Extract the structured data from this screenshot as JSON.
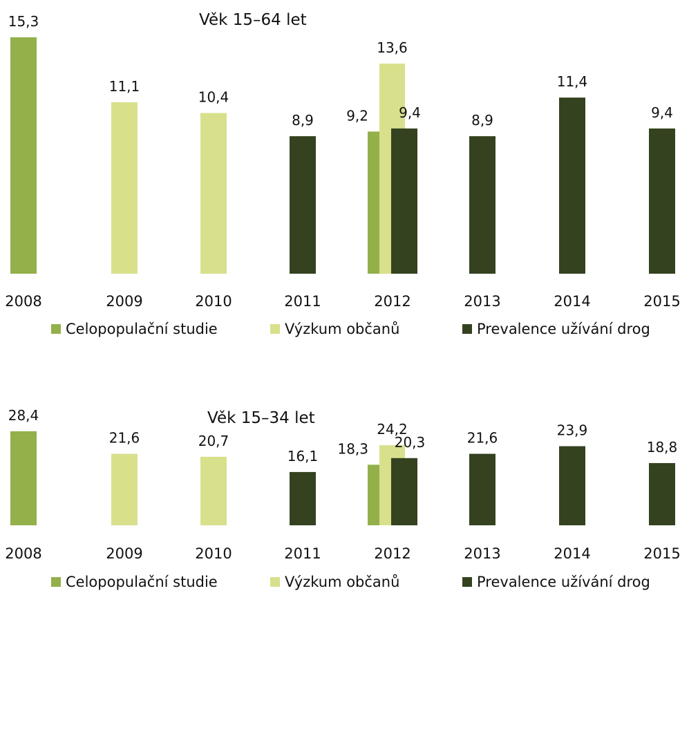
{
  "chart_data": [
    {
      "type": "bar",
      "title": "Věk 15–64 let",
      "categories": [
        "2008",
        "2009",
        "2010",
        "2011",
        "2012",
        "2013",
        "2014",
        "2015"
      ],
      "ylim": [
        0,
        15.3
      ],
      "grid": false,
      "legend_position": "bottom",
      "series": [
        {
          "name": "Celopopulační studie",
          "color": "#93b04a",
          "values": [
            15.3,
            null,
            null,
            null,
            9.2,
            null,
            null,
            null
          ],
          "labels": [
            "15,3",
            null,
            null,
            null,
            "9,2",
            null,
            null,
            null
          ]
        },
        {
          "name": "Výzkum občanů",
          "color": "#d8e08c",
          "values": [
            null,
            11.1,
            10.4,
            null,
            13.6,
            null,
            null,
            null
          ],
          "labels": [
            null,
            "11,1",
            "10,4",
            null,
            "13,6",
            null,
            null,
            null
          ]
        },
        {
          "name": "Prevalence užívání drog",
          "color": "#344220",
          "values": [
            null,
            null,
            null,
            8.9,
            9.4,
            8.9,
            11.4,
            9.4
          ],
          "labels": [
            null,
            null,
            null,
            "8,9",
            "9,4",
            "8,9",
            "11,4",
            "9,4"
          ]
        }
      ]
    },
    {
      "type": "bar",
      "title": "Věk 15–34 let",
      "categories": [
        "2008",
        "2009",
        "2010",
        "2011",
        "2012",
        "2013",
        "2014",
        "2015"
      ],
      "ylim": [
        0,
        28.4
      ],
      "grid": false,
      "legend_position": "bottom",
      "series": [
        {
          "name": "Celopopulační studie",
          "color": "#93b04a",
          "values": [
            28.4,
            null,
            null,
            null,
            18.3,
            null,
            null,
            null
          ],
          "labels": [
            "28,4",
            null,
            null,
            null,
            "18,3",
            null,
            null,
            null
          ]
        },
        {
          "name": "Výzkum občanů",
          "color": "#d8e08c",
          "values": [
            null,
            21.6,
            20.7,
            null,
            24.2,
            null,
            null,
            null
          ],
          "labels": [
            null,
            "21,6",
            "20,7",
            null,
            "24,2",
            null,
            null,
            null
          ]
        },
        {
          "name": "Prevalence užívání drog",
          "color": "#344220",
          "values": [
            null,
            null,
            null,
            16.1,
            20.3,
            21.6,
            23.9,
            18.8
          ],
          "labels": [
            null,
            null,
            null,
            "16,1",
            "20,3",
            "21,6",
            "23,9",
            "18,8"
          ]
        }
      ]
    }
  ]
}
